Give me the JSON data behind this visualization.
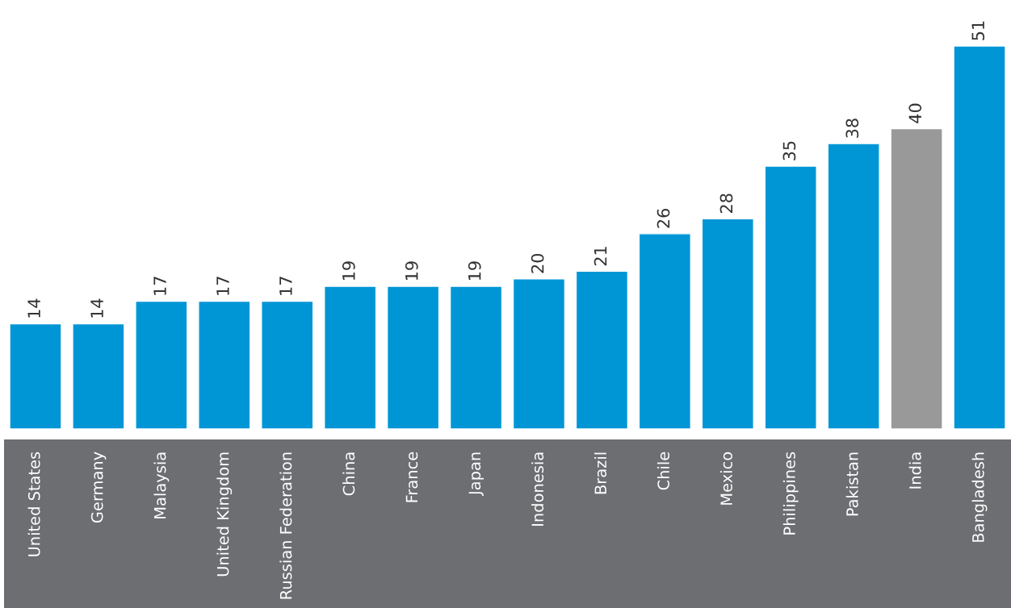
{
  "chart_data": {
    "type": "bar",
    "categories": [
      "United States",
      "Germany",
      "Malaysia",
      "United Kingdom",
      "Russian Federation",
      "China",
      "France",
      "Japan",
      "Indonesia",
      "Brazil",
      "Chile",
      "Mexico",
      "Philippines",
      "Pakistan",
      "India",
      "Bangladesh"
    ],
    "values": [
      14,
      14,
      17,
      17,
      17,
      19,
      19,
      19,
      20,
      21,
      26,
      28,
      35,
      38,
      40,
      51
    ],
    "colors": [
      "#0096d6",
      "#0096d6",
      "#0096d6",
      "#0096d6",
      "#0096d6",
      "#0096d6",
      "#0096d6",
      "#0096d6",
      "#0096d6",
      "#0096d6",
      "#0096d6",
      "#0096d6",
      "#0096d6",
      "#0096d6",
      "#999999",
      "#0096d6"
    ],
    "data_labels": true
  }
}
